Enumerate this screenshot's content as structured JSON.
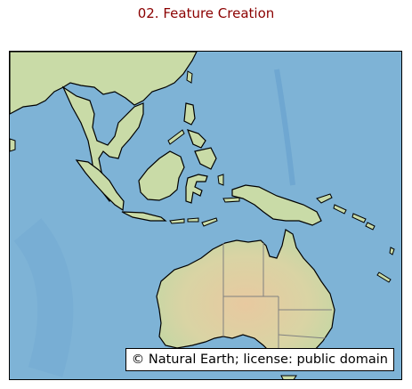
{
  "title": "02. Feature Creation",
  "map": {
    "credit": "© Natural Earth; license: public domain",
    "ocean_color": "#7eb3d6",
    "deep_ocean_color": "#5f9ccb",
    "land_color": "#c9dba7",
    "desert_color": "#e2cfa7",
    "coastline_color": "#000000",
    "border_color": "#808080"
  }
}
